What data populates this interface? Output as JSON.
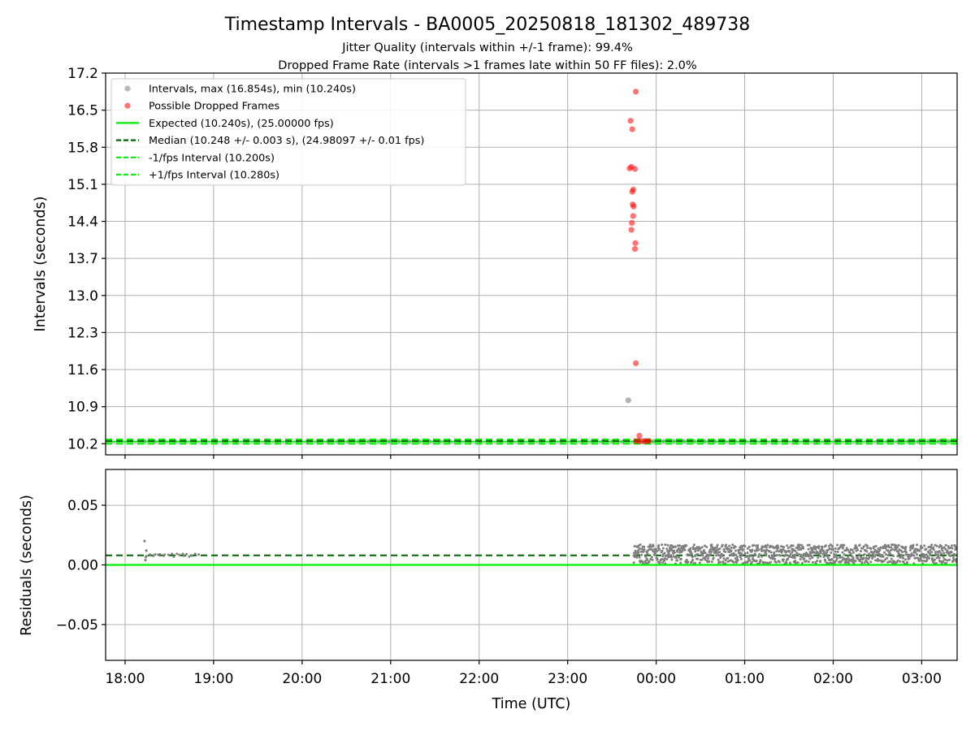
{
  "chart_data": {
    "type": "scatter",
    "title": "Timestamp Intervals - BA0005_20250818_181302_489738",
    "subtitle_lines": [
      "Jitter Quality (intervals within +/-1 frame): 99.4%",
      "Dropped Frame Rate (intervals >1 frames late within 50 FF files): 2.0%"
    ],
    "colors": {
      "intervals": "#808080",
      "dropped": "#ff0000",
      "expected": "#00ee00",
      "median": "#006400",
      "bounds": "#00ee00"
    },
    "xlabel": "Time (UTC)",
    "x_ticks": [
      "18:00",
      "19:00",
      "20:00",
      "21:00",
      "22:00",
      "23:00",
      "00:00",
      "01:00",
      "02:00",
      "03:00"
    ],
    "xlim_hours": [
      17.78,
      27.4
    ],
    "panels": [
      {
        "id": "intervals",
        "ylabel": "Intervals (seconds)",
        "ylim": [
          9.99,
          17.2
        ],
        "y_ticks": [
          "10.2",
          "10.9",
          "11.6",
          "12.3",
          "13.0",
          "13.7",
          "14.4",
          "15.1",
          "15.8",
          "16.5",
          "17.2"
        ],
        "grid": true,
        "legend_position": "upper-left",
        "legend": [
          {
            "label": "Intervals, max (16.854s), min (10.240s)",
            "kind": "marker",
            "color": "#808080"
          },
          {
            "label": "Possible Dropped Frames",
            "kind": "marker",
            "color": "#ff0000"
          },
          {
            "label": "Expected (10.240s), (25.00000 fps)",
            "kind": "solid",
            "color": "#00ee00"
          },
          {
            "label": "Median (10.248 +/- 0.003 s), (24.98097 +/- 0.01 fps)",
            "kind": "dashed",
            "color": "#006400"
          },
          {
            "label": "-1/fps Interval (10.200s)",
            "kind": "dashed",
            "color": "#00ee00"
          },
          {
            "label": "+1/fps Interval (10.280s)",
            "kind": "dashed",
            "color": "#00ee00"
          }
        ],
        "hlines": {
          "expected": 10.24,
          "median": 10.248,
          "lower": 10.2,
          "upper": 10.28
        },
        "series": [
          {
            "name": "Intervals, max (16.854s), min (10.240s)",
            "points": [
              [
                23.685,
                11.02
              ]
            ]
          },
          {
            "name": "Possible Dropped Frames",
            "points": [
              [
                23.77,
                16.85
              ],
              [
                23.71,
                16.3
              ],
              [
                23.73,
                16.14
              ],
              [
                23.72,
                15.43
              ],
              [
                23.7,
                15.4
              ],
              [
                23.76,
                15.39
              ],
              [
                23.74,
                15.0
              ],
              [
                23.73,
                14.96
              ],
              [
                23.735,
                14.72
              ],
              [
                23.745,
                14.68
              ],
              [
                23.74,
                14.5
              ],
              [
                23.725,
                14.37
              ],
              [
                23.72,
                14.24
              ],
              [
                23.765,
                13.99
              ],
              [
                23.76,
                13.88
              ],
              [
                23.77,
                11.72
              ],
              [
                23.81,
                10.35
              ],
              [
                23.77,
                10.25
              ],
              [
                23.8,
                10.25
              ],
              [
                23.84,
                10.25
              ],
              [
                23.87,
                10.25
              ],
              [
                23.9,
                10.25
              ],
              [
                23.92,
                10.25
              ]
            ]
          }
        ]
      },
      {
        "id": "residuals",
        "ylabel": "Residuals (seconds)",
        "ylim": [
          -0.08,
          0.08
        ],
        "y_ticks": [
          "−0.05",
          "0.00",
          "0.05"
        ],
        "y_tick_values": [
          -0.05,
          0.0,
          0.05
        ],
        "grid": true,
        "hlines": {
          "expected": 0.0,
          "median": 0.008
        },
        "points": [
          [
            18.22,
            0.02
          ],
          [
            18.23,
            0.004
          ],
          [
            18.24,
            0.012
          ]
        ],
        "bands": [
          {
            "from": 18.22,
            "to": 18.85,
            "min": 0.0065,
            "max": 0.0095
          },
          {
            "from": 23.75,
            "to": 27.4,
            "min": 0.001,
            "max": 0.017
          }
        ]
      }
    ]
  }
}
